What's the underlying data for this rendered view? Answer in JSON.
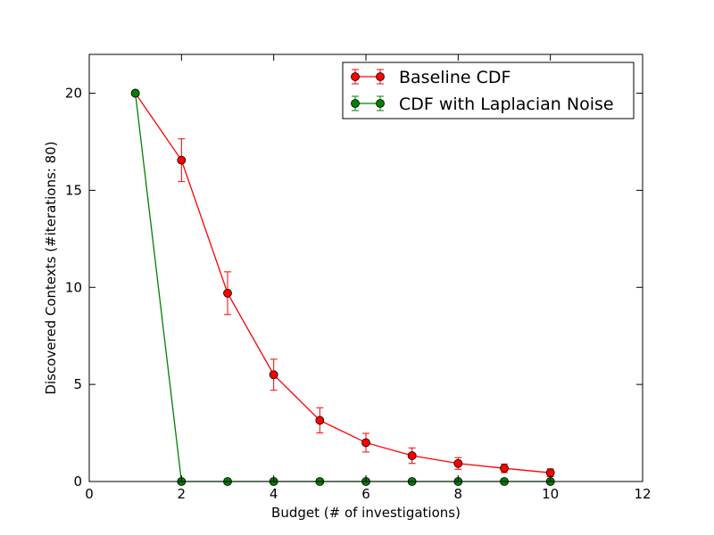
{
  "chart_data": {
    "type": "line",
    "title": "",
    "xlabel": "Budget (# of investigations)",
    "ylabel": "Discovered Contexts (#iterations: 80)",
    "xlim": [
      0,
      12
    ],
    "ylim": [
      0,
      22
    ],
    "xticks": [
      0,
      2,
      4,
      6,
      8,
      10,
      12
    ],
    "yticks": [
      0,
      5,
      10,
      15,
      20
    ],
    "grid": false,
    "legend_position": "top-right",
    "series": [
      {
        "name": "Baseline CDF",
        "color": "#ff0000",
        "marker_color": "#ff0000",
        "x": [
          1,
          2,
          3,
          4,
          5,
          6,
          7,
          8,
          9,
          10
        ],
        "y": [
          20.0,
          16.55,
          9.7,
          5.5,
          3.15,
          2.0,
          1.33,
          0.93,
          0.68,
          0.45
        ],
        "error": [
          0.0,
          1.1,
          1.1,
          0.8,
          0.65,
          0.48,
          0.4,
          0.3,
          0.22,
          0.2
        ]
      },
      {
        "name": "CDF with Laplacian Noise",
        "color": "#008000",
        "marker_color": "#008000",
        "x": [
          1,
          2,
          3,
          4,
          5,
          6,
          7,
          8,
          9,
          10
        ],
        "y": [
          20.0,
          0,
          0,
          0,
          0,
          0,
          0,
          0,
          0,
          0
        ],
        "error": [
          0,
          0,
          0,
          0,
          0,
          0,
          0,
          0,
          0,
          0
        ]
      }
    ]
  }
}
